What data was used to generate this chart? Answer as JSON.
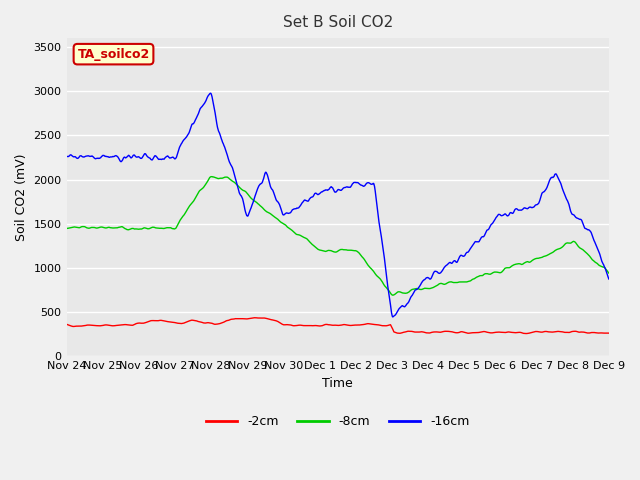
{
  "title": "Set B Soil CO2",
  "xlabel": "Time",
  "ylabel": "Soil CO2 (mV)",
  "ylim": [
    0,
    3600
  ],
  "yticks": [
    0,
    500,
    1000,
    1500,
    2000,
    2500,
    3000,
    3500
  ],
  "legend_labels": [
    "-2cm",
    "-8cm",
    "-16cm"
  ],
  "legend_colors": [
    "#ff0000",
    "#00cc00",
    "#0000ff"
  ],
  "xtick_labels": [
    "Nov 24",
    "Nov 25",
    "Nov 26",
    "Nov 27",
    "Nov 28",
    "Nov 29",
    "Nov 30",
    "Dec 1",
    "Dec 2",
    "Dec 3",
    "Dec 4",
    "Dec 5",
    "Dec 6",
    "Dec 7",
    "Dec 8",
    "Dec 9"
  ],
  "box_label": "TA_soilco2",
  "box_facecolor": "#ffffcc",
  "box_edgecolor": "#cc0000",
  "box_textcolor": "#cc0000",
  "background_color": "#e8e8e8",
  "plot_bg_color": "#e8e8e8",
  "grid_color": "#ffffff",
  "line_width": 1.0
}
